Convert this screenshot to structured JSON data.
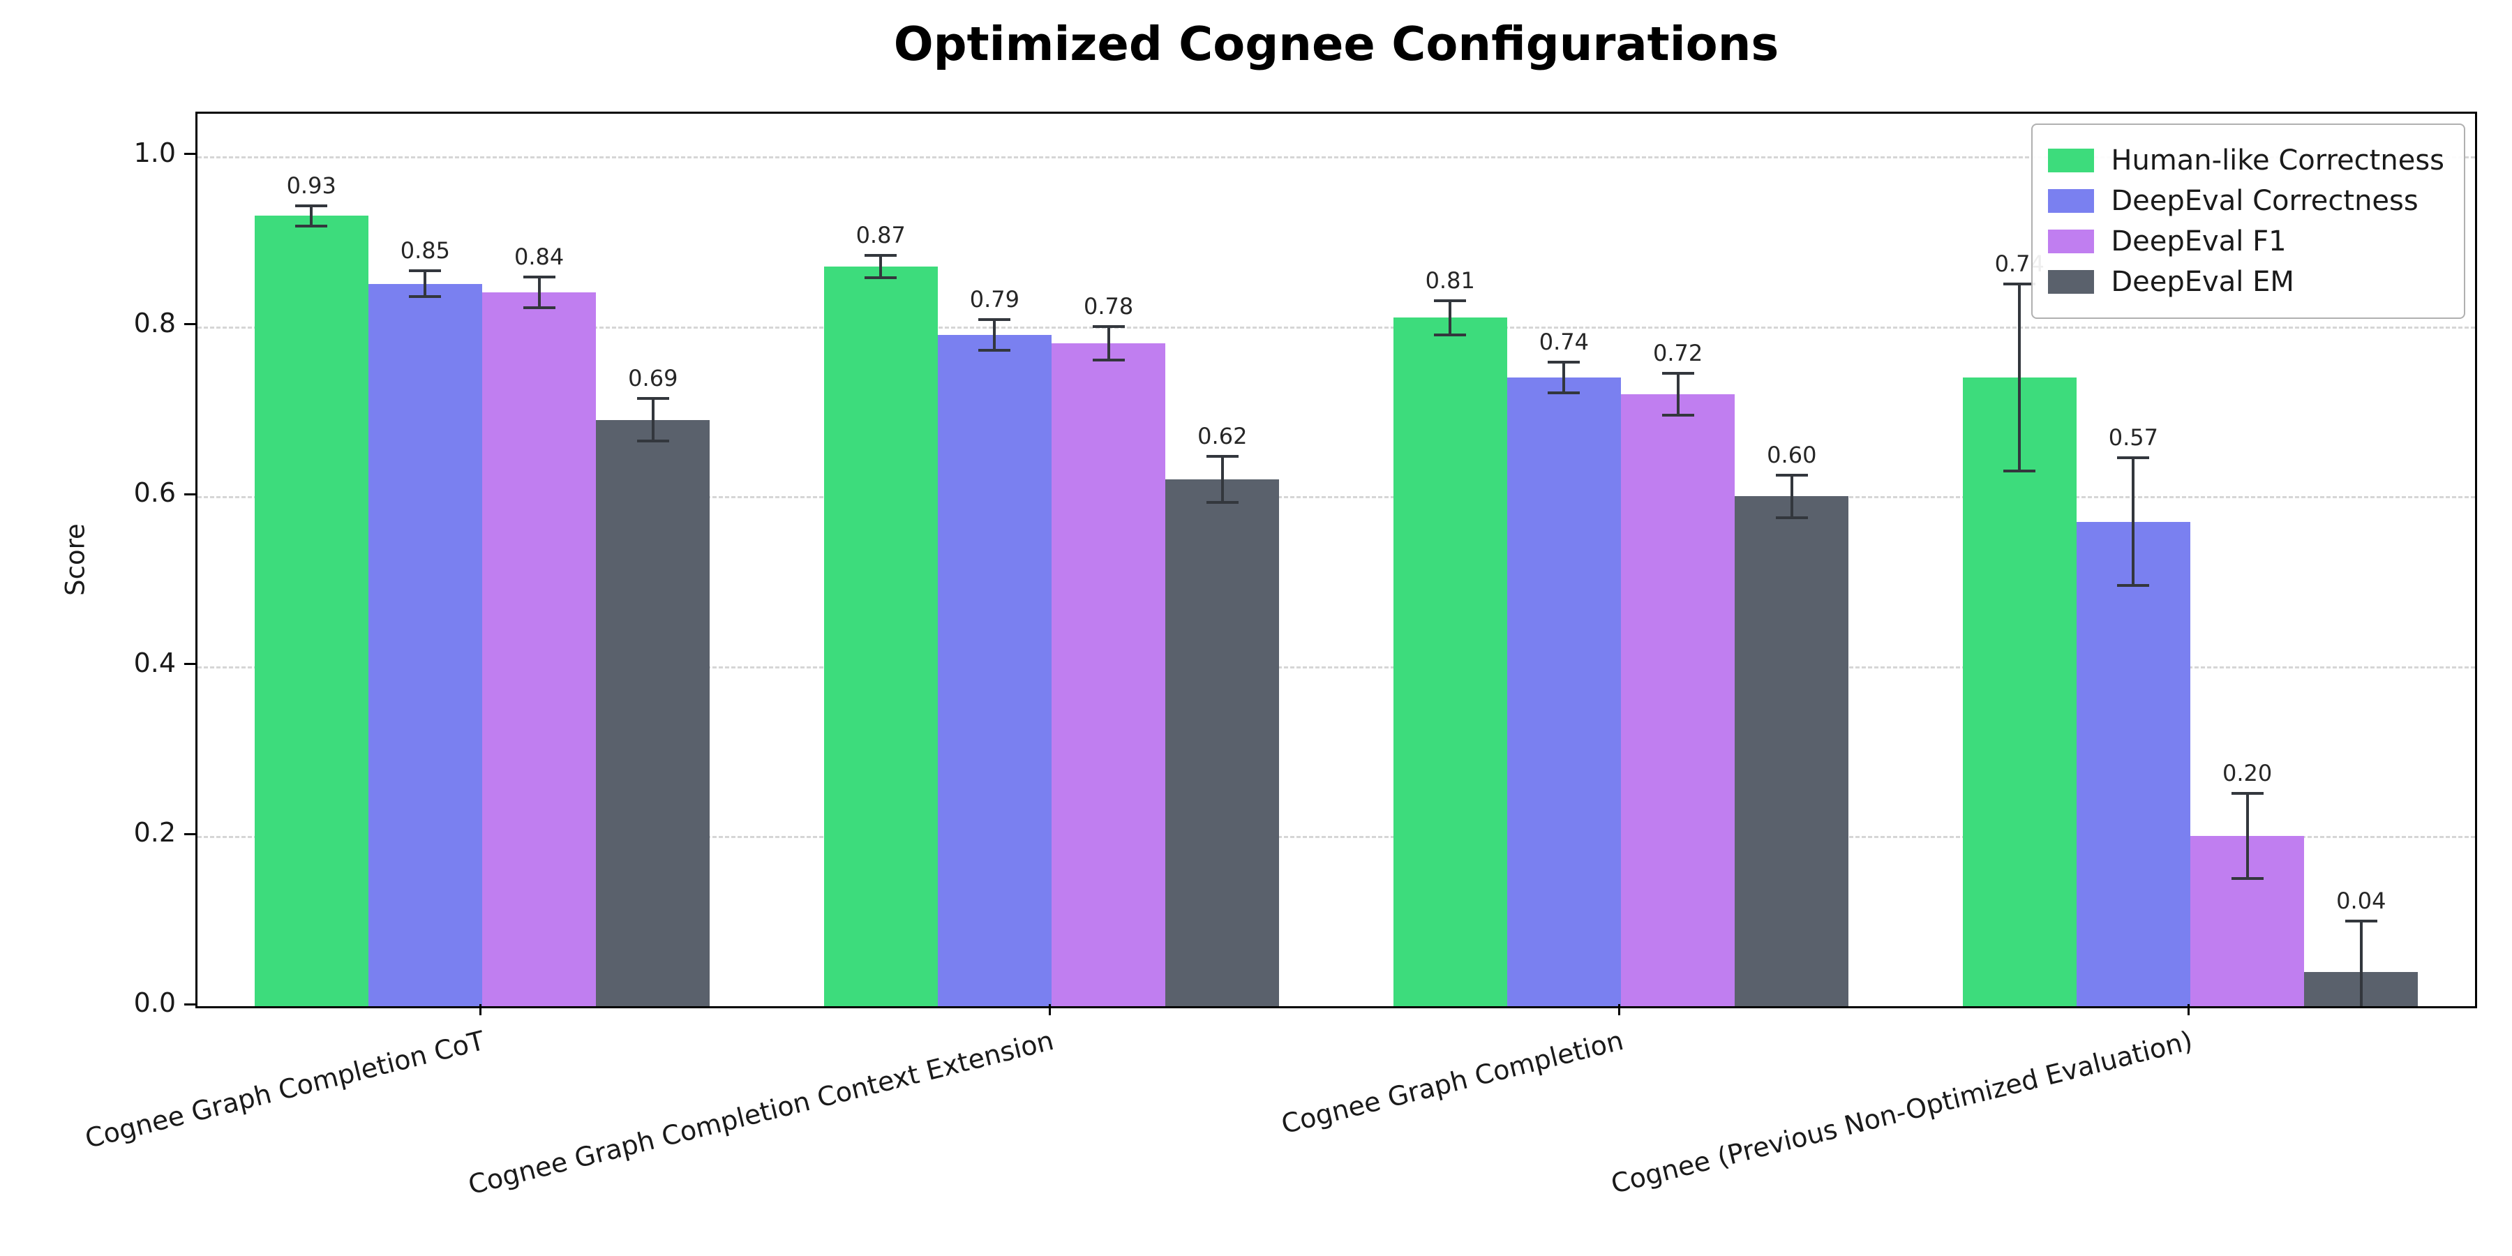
{
  "chart_data": {
    "type": "bar",
    "title": "Optimized Cognee Configurations",
    "xlabel": "",
    "ylabel": "Score",
    "ylim": [
      0,
      1.05
    ],
    "yticks": [
      0.0,
      0.2,
      0.4,
      0.6,
      0.8,
      1.0
    ],
    "grid": "dashed-horizontal",
    "legend_position": "upper right",
    "categories": [
      "Cognee Graph Completion CoT",
      "Cognee Graph Completion Context Extension",
      "Cognee Graph Completion",
      "Cognee (Previous Non-Optimized Evaluation)"
    ],
    "series": [
      {
        "name": "Human-like Correctness",
        "color": "#3ddc7c",
        "values": [
          0.93,
          0.87,
          0.81,
          0.74
        ],
        "errors": [
          0.012,
          0.013,
          0.02,
          0.11
        ]
      },
      {
        "name": "DeepEval Correctness",
        "color": "#7a80f0",
        "values": [
          0.85,
          0.79,
          0.74,
          0.57
        ],
        "errors": [
          0.015,
          0.018,
          0.018,
          0.075
        ]
      },
      {
        "name": "DeepEval F1",
        "color": "#c07ef0",
        "values": [
          0.84,
          0.78,
          0.72,
          0.2
        ],
        "errors": [
          0.018,
          0.02,
          0.025,
          0.05
        ]
      },
      {
        "name": "DeepEval EM",
        "color": "#5a616c",
        "values": [
          0.69,
          0.62,
          0.6,
          0.04
        ],
        "errors": [
          0.025,
          0.027,
          0.025,
          0.06
        ]
      }
    ]
  }
}
